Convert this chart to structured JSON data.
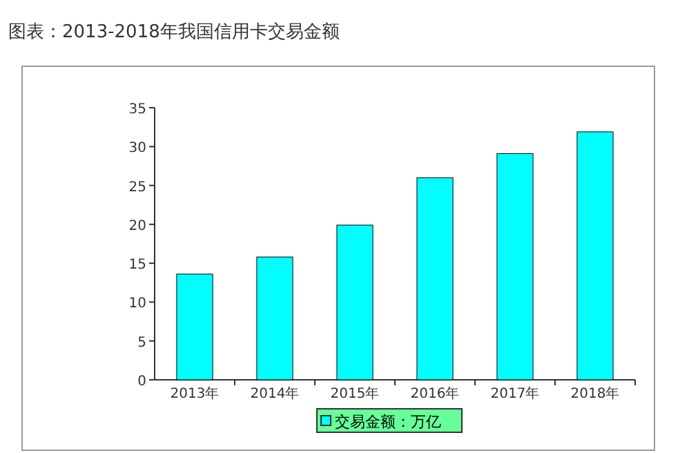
{
  "chart_data": {
    "type": "bar",
    "title": "图表：2013-2018年我国信用卡交易金额",
    "categories": [
      "2013年",
      "2014年",
      "2015年",
      "2016年",
      "2017年",
      "2018年"
    ],
    "series": [
      {
        "name": "交易金额：万亿",
        "color": "#00ffff",
        "values": [
          13.6,
          15.8,
          19.9,
          26.0,
          29.1,
          31.9
        ]
      }
    ],
    "ylim": [
      0,
      35
    ],
    "yticks": [
      0,
      5,
      10,
      15,
      20,
      25,
      30,
      35
    ],
    "legend": "bottom"
  }
}
